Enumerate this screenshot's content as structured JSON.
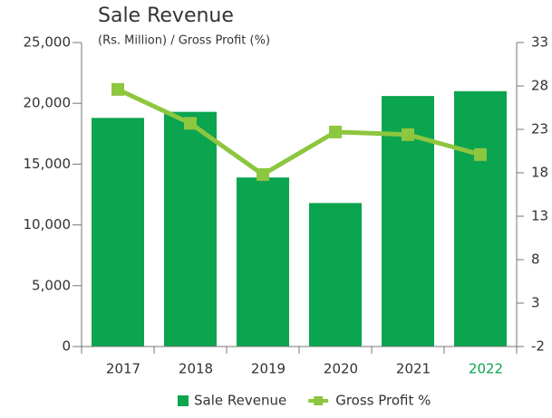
{
  "chart_data": {
    "type": "bar_line",
    "title": "Sale Revenue",
    "subtitle": "(Rs. Million) / Gross Profit (%)",
    "categories": [
      "2017",
      "2018",
      "2019",
      "2020",
      "2021",
      "2022"
    ],
    "series": [
      {
        "name": "Sale Revenue",
        "type": "bar",
        "color": "#0ba44f",
        "values": [
          18800,
          19300,
          13900,
          11800,
          20600,
          21000
        ]
      },
      {
        "name": "Gross Profit %",
        "type": "line",
        "axis": "y2",
        "color": "#8dc63f",
        "values": [
          27.6,
          23.7,
          17.8,
          22.7,
          22.4,
          20.1
        ]
      }
    ],
    "ylim": [
      0,
      25000
    ],
    "yticks": [
      {
        "value": 0,
        "label": "0"
      },
      {
        "value": 5000,
        "label": "5,000"
      },
      {
        "value": 10000,
        "label": "10,000"
      },
      {
        "value": 15000,
        "label": "15,000"
      },
      {
        "value": 20000,
        "label": "20,000"
      },
      {
        "value": 25000,
        "label": "25,000"
      }
    ],
    "y2lim": [
      -2,
      33
    ],
    "y2ticks": [
      -2,
      3,
      8,
      13,
      18,
      23,
      28,
      33
    ],
    "legend": "bottom"
  }
}
